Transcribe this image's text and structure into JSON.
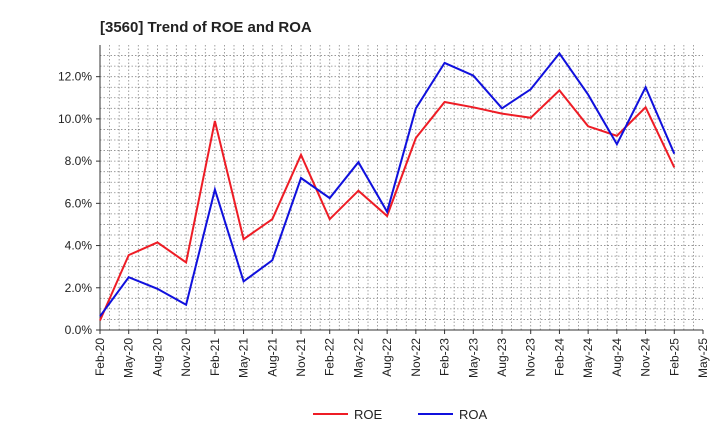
{
  "chart_data": {
    "type": "line",
    "title": "[3560]  Trend of ROE and ROA",
    "xlabel": "",
    "ylabel": "",
    "categories": [
      "Feb-20",
      "May-20",
      "Aug-20",
      "Nov-20",
      "Feb-21",
      "May-21",
      "Aug-21",
      "Nov-21",
      "Feb-22",
      "May-22",
      "Aug-22",
      "Nov-22",
      "Feb-23",
      "May-23",
      "Aug-23",
      "Nov-23",
      "Feb-24",
      "May-24",
      "Aug-24",
      "Nov-24",
      "Feb-25",
      "May-25"
    ],
    "ylim": [
      0,
      13.5
    ],
    "yticks": [
      0,
      2,
      4,
      6,
      8,
      10,
      12
    ],
    "ytick_labels": [
      "0.0%",
      "2.0%",
      "4.0%",
      "6.0%",
      "8.0%",
      "10.0%",
      "12.0%"
    ],
    "grid": true,
    "legend_position": "bottom",
    "series": [
      {
        "name": "ROE",
        "color": "#ee1c25",
        "values": [
          0.45,
          3.55,
          4.15,
          3.2,
          9.9,
          4.3,
          5.25,
          8.3,
          5.25,
          6.6,
          5.4,
          9.1,
          10.8,
          10.55,
          10.25,
          10.05,
          11.35,
          9.65,
          9.2,
          10.55,
          7.7,
          null
        ]
      },
      {
        "name": "ROA",
        "color": "#1010dd",
        "values": [
          0.65,
          2.5,
          1.95,
          1.2,
          6.65,
          2.3,
          3.3,
          7.2,
          6.25,
          7.95,
          5.6,
          10.5,
          12.65,
          12.05,
          10.5,
          11.4,
          13.1,
          11.15,
          8.8,
          11.5,
          8.35,
          null
        ]
      }
    ]
  }
}
